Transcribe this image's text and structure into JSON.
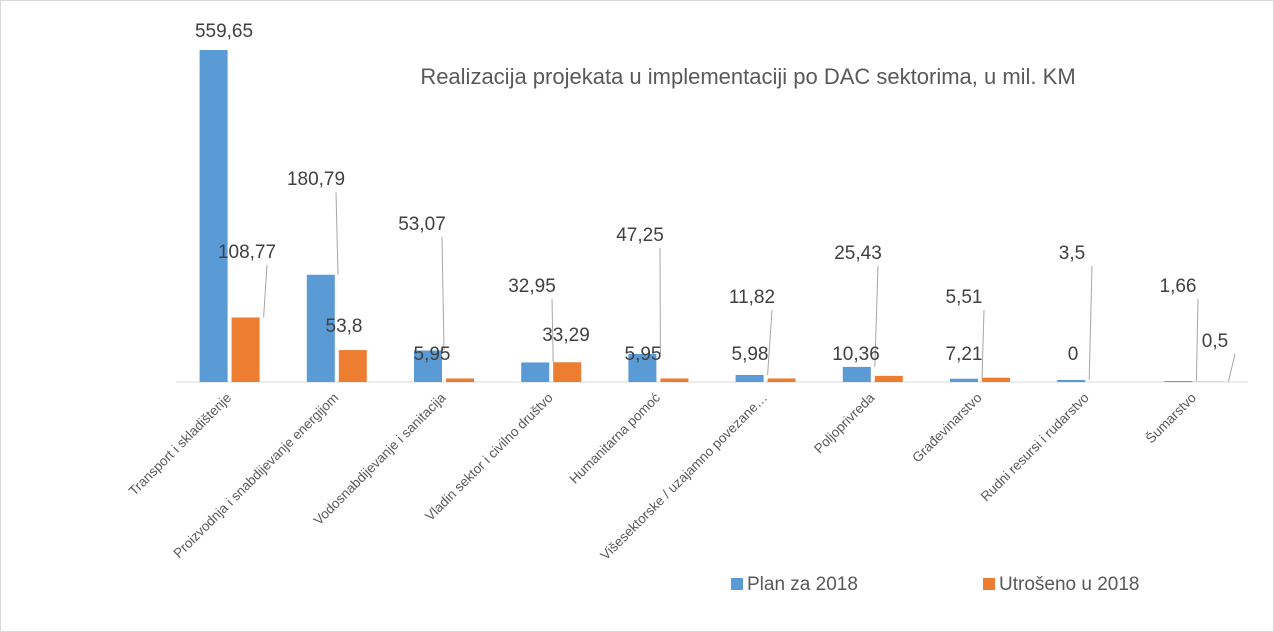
{
  "chart_data": {
    "type": "bar",
    "title": "Realizacija projekata u implementaciji po DAC sektorima, u mil. KM",
    "categories": [
      "Transport i skladištenje",
      "Proizvodnja i snabdijevanje energijom",
      "Vodosnabdijevanje i sanitacija",
      "Vladin sektor i civilno društvo",
      "Humanitarna pomoć",
      "Višesektorske / uzajamno povezane…",
      "Poljoprivreda",
      "Građevinarstvo",
      "Rudni resursi i rudarstvo",
      "Šumarstvo"
    ],
    "series": [
      {
        "name": "Plan za 2018",
        "color": "#5b9bd5",
        "values": [
          559.65,
          180.79,
          53.07,
          32.95,
          47.25,
          11.82,
          25.43,
          5.51,
          3.5,
          1.66
        ],
        "value_labels": [
          "559,65",
          "180,79",
          "53,07",
          "32,95",
          "47,25",
          "11,82",
          "25,43",
          "5,51",
          "3,5",
          "1,66"
        ]
      },
      {
        "name": "Utrošeno u 2018",
        "color": "#ed7d31",
        "values": [
          108.77,
          53.8,
          5.95,
          33.29,
          5.95,
          5.98,
          10.36,
          7.21,
          0,
          0.5
        ],
        "value_labels": [
          "108,77",
          "53,8",
          "5,95",
          "33,29",
          "5,95",
          "5,98",
          "10,36",
          "7,21",
          "0",
          "0,5"
        ]
      }
    ],
    "legend": "bottom"
  }
}
